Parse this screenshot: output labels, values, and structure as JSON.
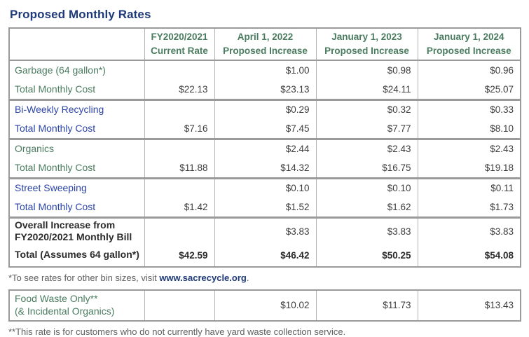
{
  "title": "Proposed Monthly Rates",
  "colors": {
    "title_navy": "#1e3a78",
    "section_green": "#4a7c5f",
    "section_blue": "#2b43a8",
    "value_text": "#3d3d3d",
    "bold_text": "#2b2b2b",
    "footnote_gray": "#5f5f5f",
    "border_gray": "#9a9a9a"
  },
  "rates_table": {
    "headers": [
      "FY2020/2021\nCurrent Rate",
      "April 1, 2022\nProposed Increase",
      "January 1, 2023\nProposed Increase",
      "January 1, 2024\nProposed Increase"
    ],
    "sections": [
      {
        "theme": "green",
        "rows": [
          {
            "label": "Garbage (64 gallon*)",
            "values": [
              "",
              "$1.00",
              "$0.98",
              "$0.96"
            ]
          },
          {
            "label": "Total Monthly Cost",
            "values": [
              "$22.13",
              "$23.13",
              "$24.11",
              "$25.07"
            ]
          }
        ]
      },
      {
        "theme": "blue",
        "rows": [
          {
            "label": "Bi-Weekly Recycling",
            "values": [
              "",
              "$0.29",
              "$0.32",
              "$0.33"
            ]
          },
          {
            "label": "Total Monthly Cost",
            "values": [
              "$7.16",
              "$7.45",
              "$7.77",
              "$8.10"
            ]
          }
        ]
      },
      {
        "theme": "green",
        "rows": [
          {
            "label": "Organics",
            "values": [
              "",
              "$2.44",
              "$2.43",
              "$2.43"
            ]
          },
          {
            "label": "Total Monthly Cost",
            "values": [
              "$11.88",
              "$14.32",
              "$16.75",
              "$19.18"
            ]
          }
        ]
      },
      {
        "theme": "blue",
        "rows": [
          {
            "label": "Street Sweeping",
            "values": [
              "",
              "$0.10",
              "$0.10",
              "$0.11"
            ]
          },
          {
            "label": "Total Monthly Cost",
            "values": [
              "$1.42",
              "$1.52",
              "$1.62",
              "$1.73"
            ]
          }
        ]
      },
      {
        "theme": "dark",
        "rows": [
          {
            "label": "Overall Increase from\nFY2020/2021 Monthly Bill",
            "values": [
              "",
              "$3.83",
              "$3.83",
              "$3.83"
            ]
          },
          {
            "label": "Total (Assumes 64 gallon*)",
            "values": [
              "$42.59",
              "$46.42",
              "$50.25",
              "$54.08"
            ]
          }
        ]
      }
    ]
  },
  "footnote_bin_sizes": {
    "prefix": "*To see rates for other bin sizes, visit ",
    "link": "www.sacrecycle.org",
    "suffix": "."
  },
  "food_waste_table": {
    "label": "Food Waste Only**\n(& Incidental Organics)",
    "values": [
      "",
      "$10.02",
      "$11.73",
      "$13.43"
    ]
  },
  "footnote_yard_waste": "**This rate is for customers who do not currently have yard waste collection service."
}
